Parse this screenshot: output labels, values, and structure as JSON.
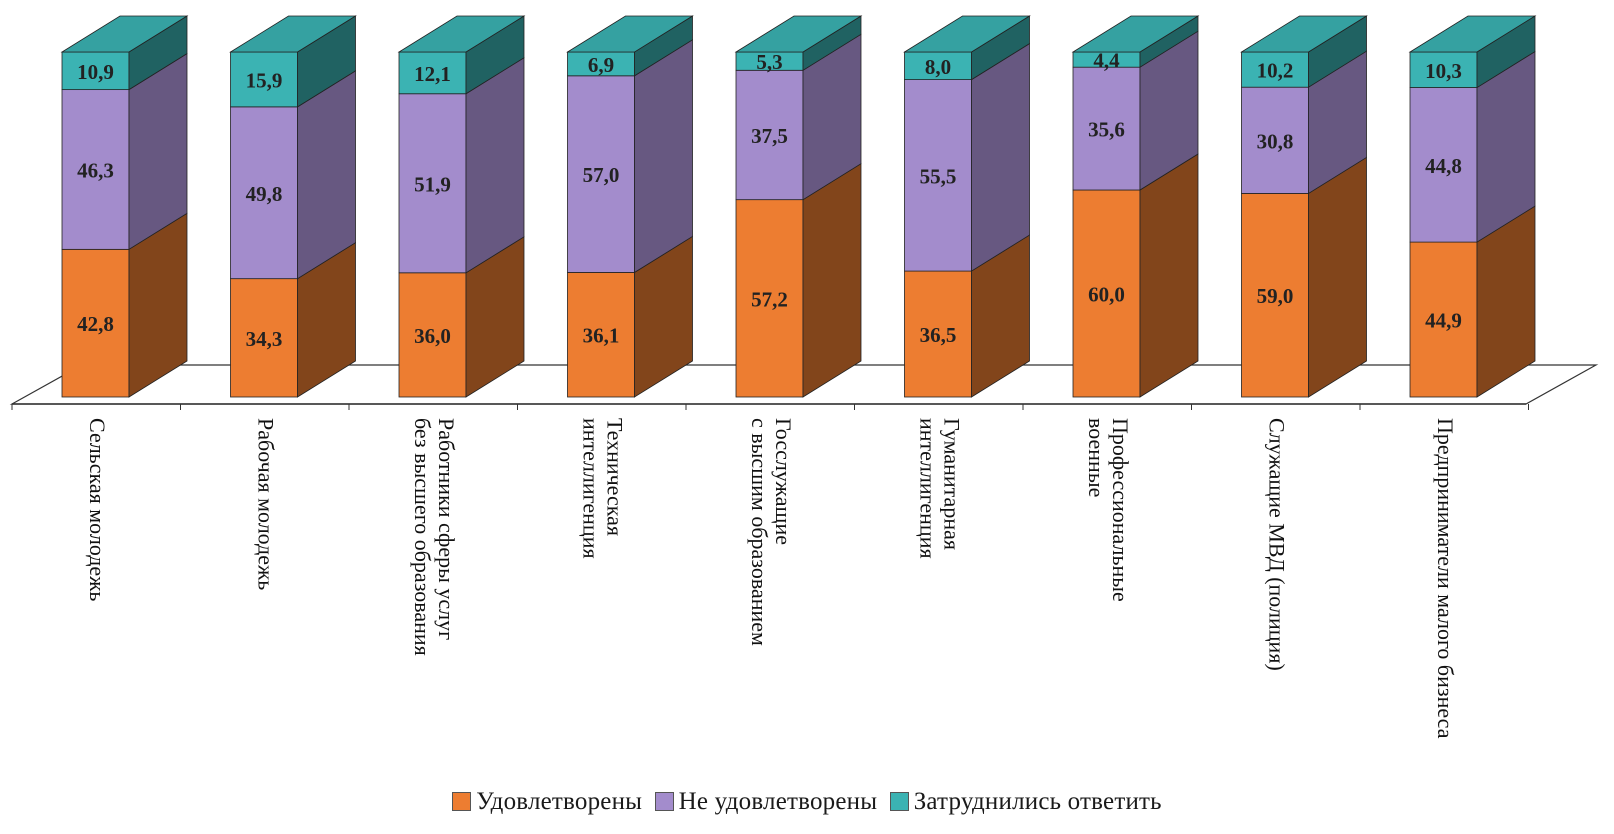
{
  "chart_data": {
    "type": "bar",
    "stacked": true,
    "three_d": true,
    "ylim": [
      0,
      100
    ],
    "categories": [
      "Сельская молодежь",
      "Рабочая молодежь",
      "Работники сферы услуг\nбез высшего образования",
      "Техническая\nинтеллигенция",
      "Госслужащие\nс высшим образованием",
      "Гуманитарная\nинтеллигенция",
      "Профессиональные\nвоенные",
      "Служащие МВД (полиция)",
      "Предприниматели малого бизнеса"
    ],
    "series": [
      {
        "name": "Удовлетворены",
        "color": "#ed7d31",
        "values": [
          42.8,
          34.3,
          36.0,
          36.1,
          57.2,
          36.5,
          60.0,
          59.0,
          44.9
        ],
        "labels": [
          "42,8",
          "34,3",
          "36,0",
          "36,1",
          "57,2",
          "36,5",
          "60,0",
          "59,0",
          "44,9"
        ]
      },
      {
        "name": "Не удовлетворены",
        "color": "#a38ccc",
        "values": [
          46.3,
          49.8,
          51.9,
          57.0,
          37.5,
          55.5,
          35.6,
          30.8,
          44.8
        ],
        "labels": [
          "46,3",
          "49,8",
          "51,9",
          "57,0",
          "37,5",
          "55,5",
          "35,6",
          "30,8",
          "44,8"
        ]
      },
      {
        "name": "Затруднились ответить",
        "color": "#3bb3b3",
        "values": [
          10.9,
          15.9,
          12.1,
          6.9,
          5.3,
          8.0,
          4.4,
          10.2,
          10.3
        ],
        "labels": [
          "10,9",
          "15,9",
          "12,1",
          "6,9",
          "5,3",
          "8,0",
          "4,4",
          "10,2",
          "10,3"
        ]
      }
    ],
    "legend_position": "bottom",
    "gridlines": false
  }
}
